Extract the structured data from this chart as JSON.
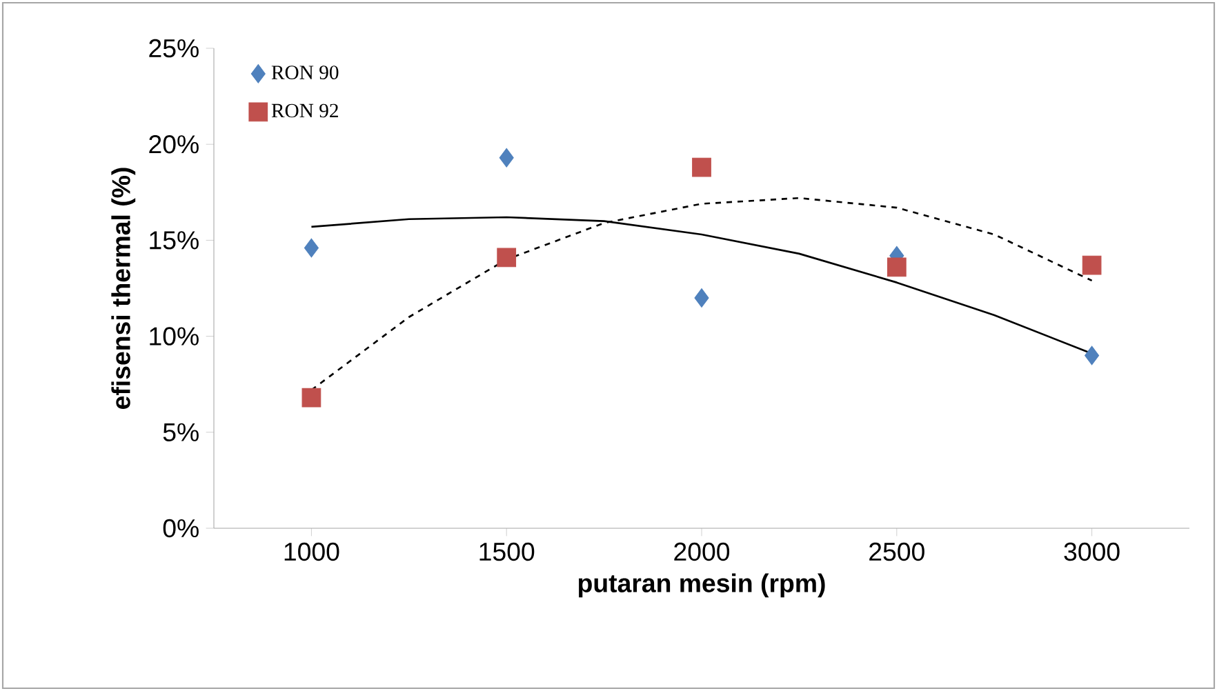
{
  "chart_data": {
    "type": "scatter",
    "xlabel": "putaran mesin (rpm)",
    "ylabel": "efisensi thermal (%)",
    "x": [
      1000,
      1500,
      2000,
      2500,
      3000
    ],
    "xlim": [
      750,
      3250
    ],
    "xticks": [
      1000,
      1500,
      2000,
      2500,
      3000
    ],
    "ylim": [
      0,
      25
    ],
    "yticks": [
      {
        "value": 0,
        "label": "0%"
      },
      {
        "value": 5,
        "label": "5%"
      },
      {
        "value": 10,
        "label": "10%"
      },
      {
        "value": 15,
        "label": "15%"
      },
      {
        "value": 20,
        "label": "20%"
      },
      {
        "value": 25,
        "label": "25%"
      }
    ],
    "grid": false,
    "legend": "top left",
    "series": [
      {
        "name": "RON 90",
        "marker": "diamond",
        "color": "#4f81bd",
        "values": [
          14.6,
          19.3,
          12.0,
          14.2,
          9.0
        ]
      },
      {
        "name": "RON 92",
        "marker": "square",
        "color": "#c0504d",
        "values": [
          6.8,
          14.1,
          18.8,
          13.6,
          13.7
        ]
      },
      {
        "type": "line",
        "marker": "none",
        "line_style": "solid",
        "color": "#000000",
        "x": [
          1000,
          1250,
          1500,
          1750,
          2000,
          2250,
          2500,
          2750,
          3000
        ],
        "values": [
          15.7,
          16.1,
          16.2,
          16.0,
          15.3,
          14.3,
          12.8,
          11.1,
          9.1
        ]
      },
      {
        "type": "line",
        "marker": "none",
        "line_style": "dashed",
        "color": "#000000",
        "x": [
          1000,
          1250,
          1500,
          1750,
          2000,
          2250,
          2500,
          2750,
          3000
        ],
        "values": [
          7.2,
          11.0,
          14.0,
          15.9,
          16.9,
          17.2,
          16.7,
          15.3,
          12.9
        ]
      }
    ]
  }
}
